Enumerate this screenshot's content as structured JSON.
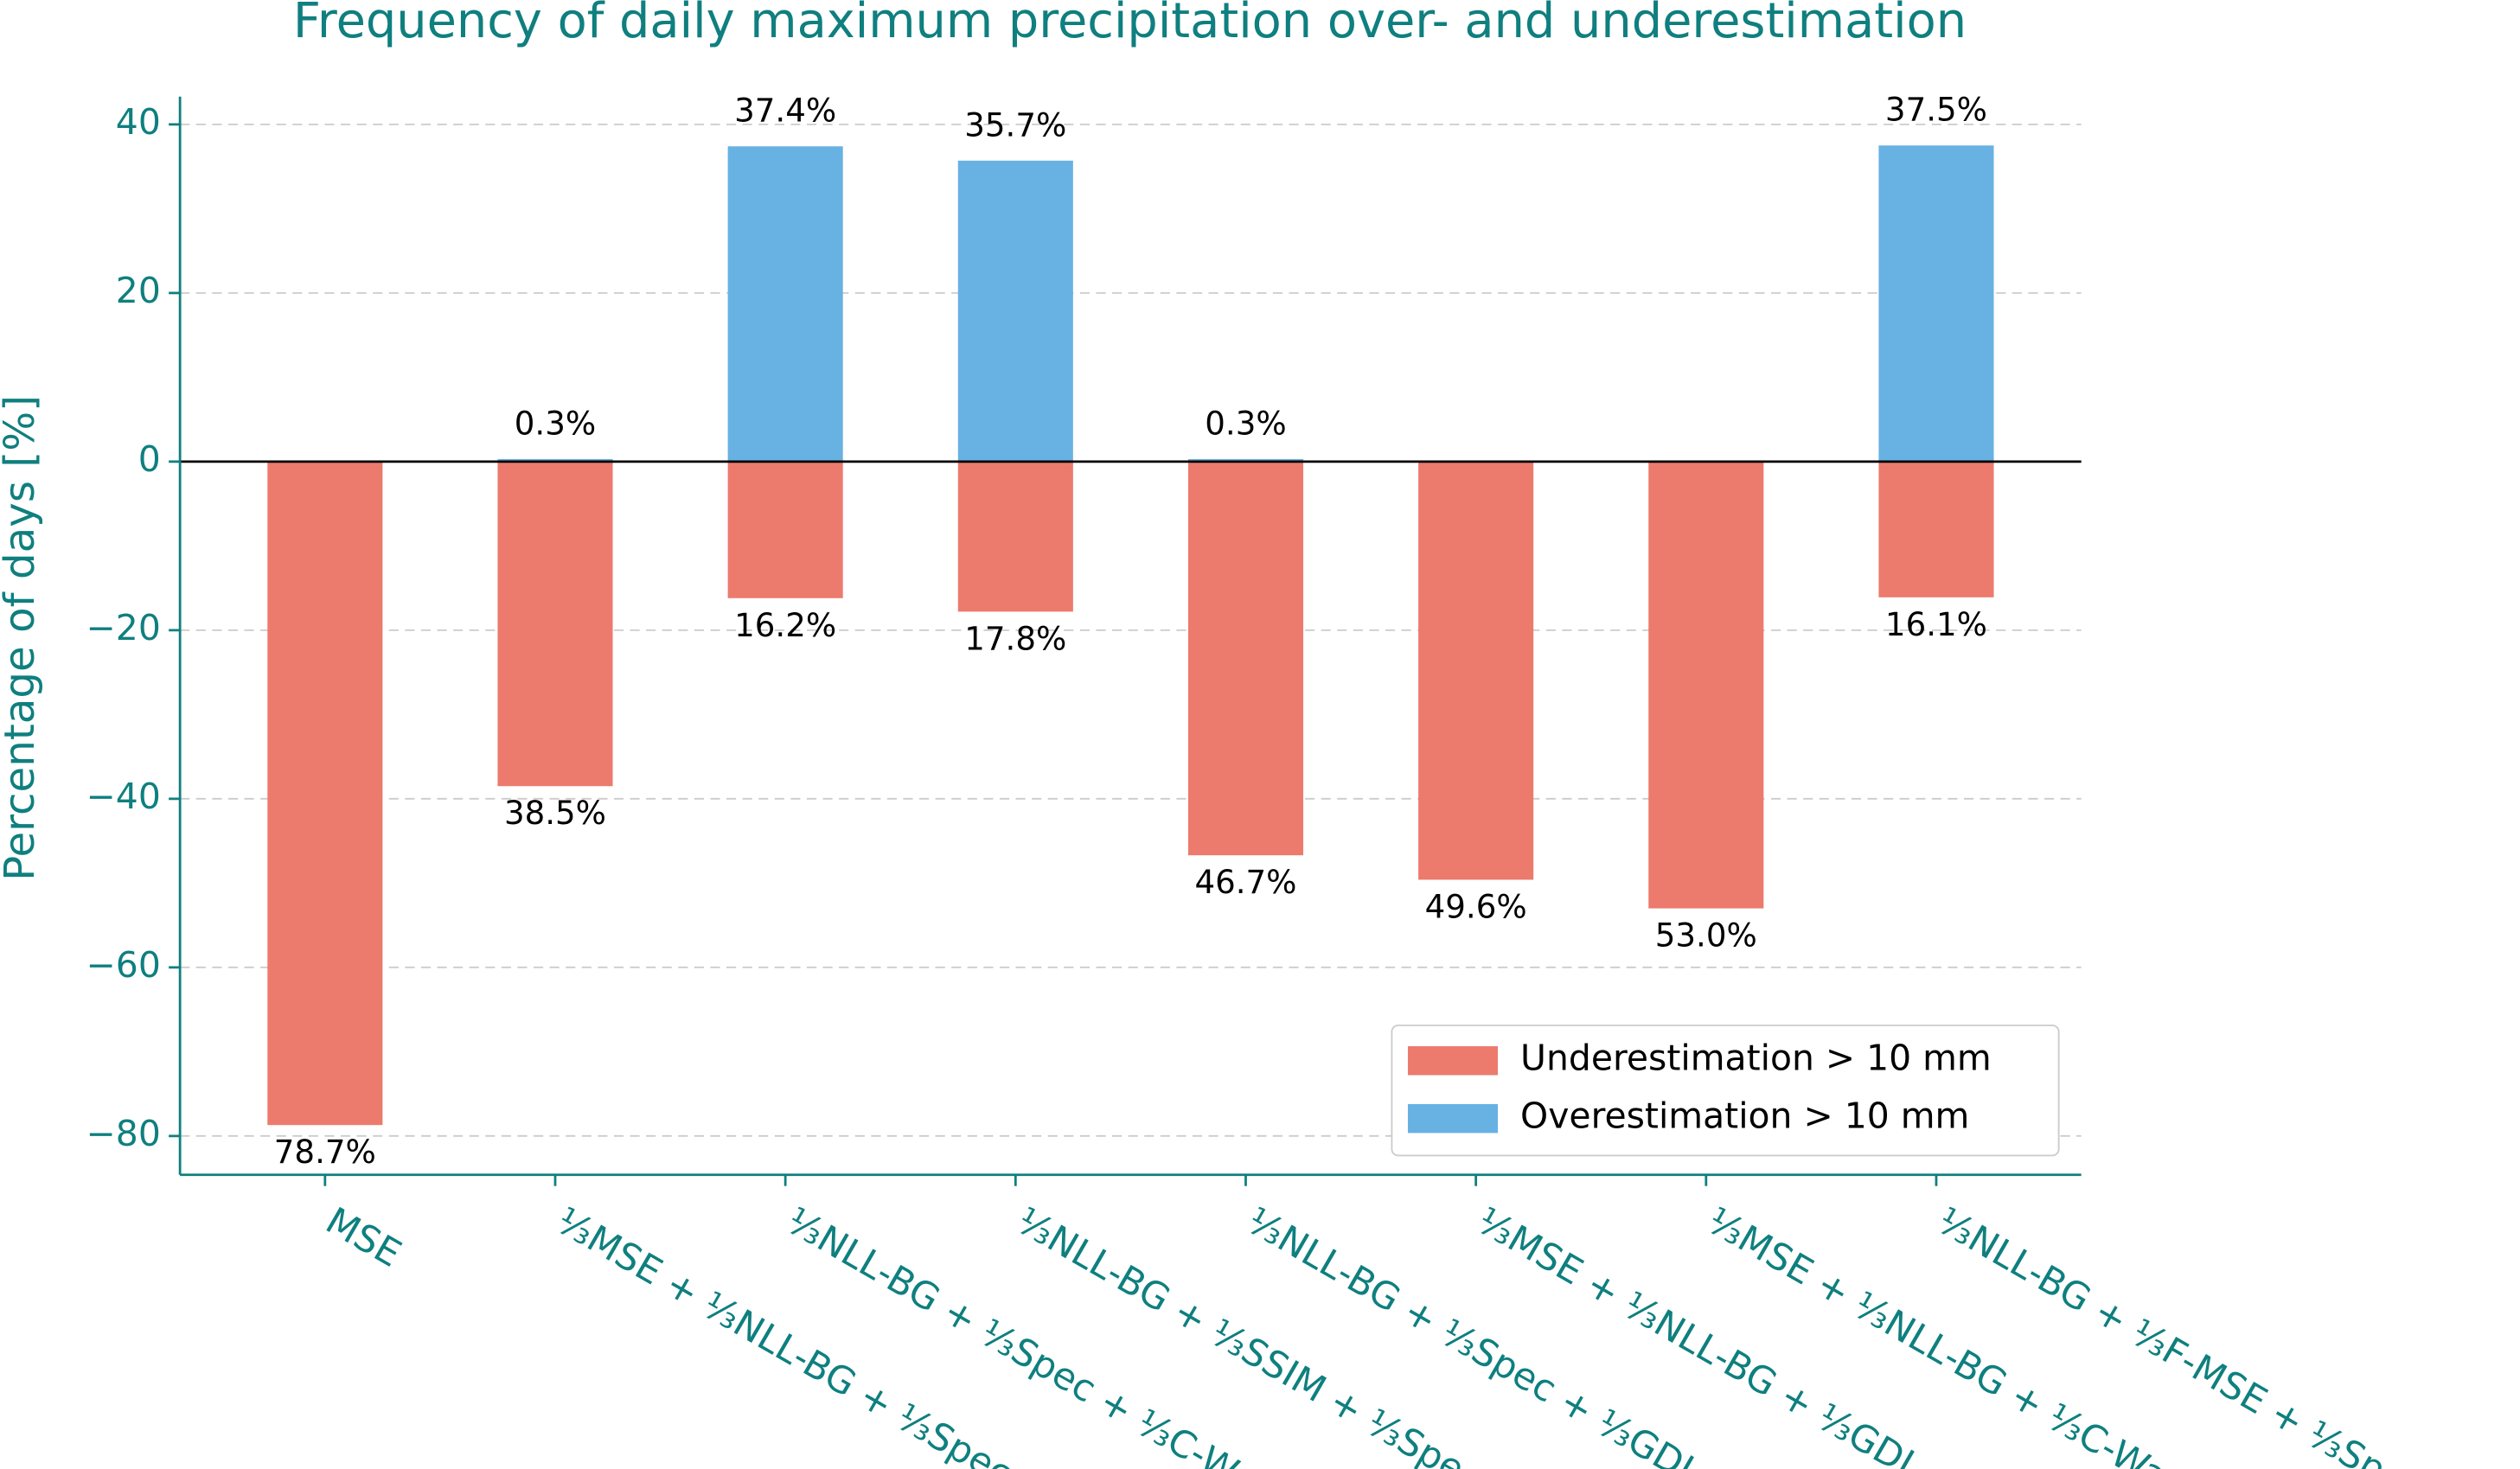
{
  "chart_data": {
    "type": "bar",
    "title": "Frequency of daily maximum precipitation over- and underestimation",
    "y_label": "Percentage of days [%]",
    "categories": [
      "MSE",
      "⅓MSE + ⅓NLL-BG + ⅓Spec",
      "⅓NLL-BG + ⅓Spec + ⅓C-Wav",
      "⅓NLL-BG + ⅓SSIM + ⅓Spec",
      "⅓NLL-BG + ⅓Spec + ⅓GDL",
      "⅓MSE + ⅓NLL-BG + ⅓GDL",
      "⅓MSE + ⅓NLL-BG + ⅓C-Wav",
      "⅓NLL-BG + ⅓F-MSE + ⅓Spec"
    ],
    "series": [
      {
        "name": "Underestimation > 10 mm",
        "color": "#ec7a6d",
        "values": [
          -78.7,
          -38.5,
          -16.2,
          -17.8,
          -46.7,
          -49.6,
          -53.0,
          -16.1
        ],
        "value_labels": [
          "78.7%",
          "38.5%",
          "16.2%",
          "17.8%",
          "46.7%",
          "49.6%",
          "53.0%",
          "16.1%"
        ]
      },
      {
        "name": "Overestimation > 10 mm",
        "color": "#68b1e3",
        "values": [
          0,
          0.3,
          37.4,
          35.7,
          0.3,
          0,
          0,
          37.5
        ],
        "value_labels": [
          null,
          "0.3%",
          "37.4%",
          "35.7%",
          "0.3%",
          null,
          null,
          "37.5%"
        ]
      }
    ],
    "ylim": [
      -84.6,
      43.3
    ],
    "yticks": [
      {
        "value": -80,
        "label": "−80"
      },
      {
        "value": -60,
        "label": "−60"
      },
      {
        "value": -40,
        "label": "−40"
      },
      {
        "value": -20,
        "label": "−20"
      },
      0,
      20,
      40
    ],
    "grid": true,
    "legend": "lower right"
  }
}
